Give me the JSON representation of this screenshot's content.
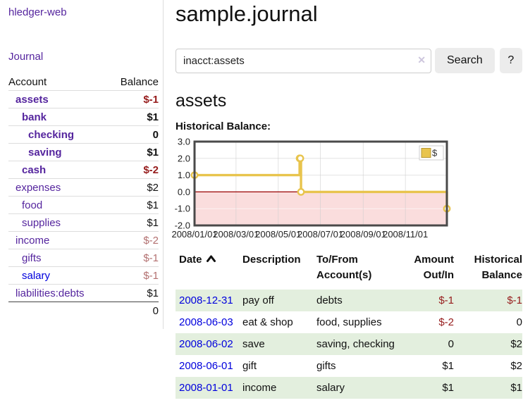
{
  "app": {
    "title": "hledger-web"
  },
  "sidebar": {
    "journal_label": "Journal",
    "table": {
      "headers": {
        "account": "Account",
        "balance": "Balance"
      },
      "rows": [
        {
          "account": "assets",
          "balance": "$-1"
        },
        {
          "account": "bank",
          "balance": "$1"
        },
        {
          "account": "checking",
          "balance": "0"
        },
        {
          "account": "saving",
          "balance": "$1"
        },
        {
          "account": "cash",
          "balance": "$-2"
        },
        {
          "account": "expenses",
          "balance": "$2"
        },
        {
          "account": "food",
          "balance": "$1"
        },
        {
          "account": "supplies",
          "balance": "$1"
        },
        {
          "account": "income",
          "balance": "$-2"
        },
        {
          "account": "gifts",
          "balance": "$-1"
        },
        {
          "account": "salary",
          "balance": "$-1"
        },
        {
          "account": "liabilities:debts",
          "balance": "$1"
        }
      ],
      "total": "0"
    }
  },
  "main": {
    "title": "sample.journal",
    "search": {
      "value": "inacct:assets",
      "clear_icon": "✕",
      "button_label": "Search",
      "help_label": "?"
    },
    "account_heading": "assets",
    "chart_heading": "Historical Balance:"
  },
  "chart_data": {
    "type": "line",
    "title": "Historical Balance",
    "series": [
      {
        "name": "$",
        "points": [
          [
            "2008-01-01",
            1
          ],
          [
            "2008-06-01",
            2
          ],
          [
            "2008-06-02",
            2
          ],
          [
            "2008-06-03",
            0
          ],
          [
            "2008-12-31",
            -1
          ]
        ]
      }
    ],
    "step": "after",
    "x_range": [
      "2008-01-01",
      "2008-12-31"
    ],
    "x_ticks": [
      "2008/01/01",
      "2008/03/01",
      "2008/05/01",
      "2008/07/01",
      "2008/09/01",
      "2008/11/01"
    ],
    "y_ticks": [
      3,
      2,
      1,
      0,
      -1,
      -2
    ],
    "ylim": [
      -2,
      3
    ],
    "grid": true,
    "legend": {
      "label": "$",
      "position": "top-right"
    },
    "colors": {
      "line": "#e8c44d",
      "marker_fill": "#ffffff",
      "negative_region": "#fadddd",
      "zero_line": "#990000",
      "border": "#4a4a4a",
      "grid": "#cccccc"
    }
  },
  "register": {
    "headers": {
      "date": "Date",
      "description": "Description",
      "accounts": "To/From Account(s)",
      "amount": "Amount Out/In",
      "balance": "Historical Balance"
    },
    "rows": [
      {
        "date": "2008-12-31",
        "description": "pay off",
        "accounts": "debts",
        "amount": "$-1",
        "balance": "$-1"
      },
      {
        "date": "2008-06-03",
        "description": "eat & shop",
        "accounts": "food, supplies",
        "amount": "$-2",
        "balance": "0"
      },
      {
        "date": "2008-06-02",
        "description": "save",
        "accounts": "saving, checking",
        "amount": "0",
        "balance": "$2"
      },
      {
        "date": "2008-06-01",
        "description": "gift",
        "accounts": "gifts",
        "amount": "$1",
        "balance": "$2"
      },
      {
        "date": "2008-01-01",
        "description": "income",
        "accounts": "salary",
        "amount": "$1",
        "balance": "$1"
      }
    ]
  }
}
